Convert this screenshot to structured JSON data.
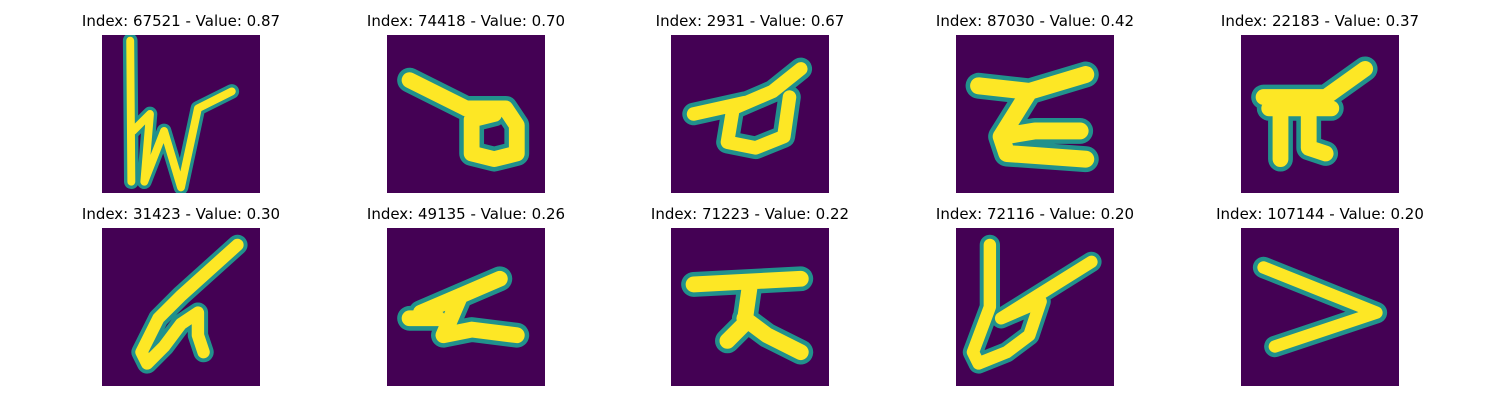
{
  "panels": [
    {
      "index": "67521",
      "value": "0.87",
      "title": "Index: 67521 - Value: 0.87"
    },
    {
      "index": "74418",
      "value": "0.70",
      "title": "Index: 74418 - Value: 0.70"
    },
    {
      "index": "2931",
      "value": "0.67",
      "title": "Index: 2931 - Value: 0.67"
    },
    {
      "index": "87030",
      "value": "0.42",
      "title": "Index: 87030 - Value: 0.42"
    },
    {
      "index": "22183",
      "value": "0.37",
      "title": "Index: 22183 - Value: 0.37"
    },
    {
      "index": "31423",
      "value": "0.30",
      "title": "Index: 31423 - Value: 0.30"
    },
    {
      "index": "49135",
      "value": "0.26",
      "title": "Index: 49135 - Value: 0.26"
    },
    {
      "index": "71223",
      "value": "0.22",
      "title": "Index: 71223 - Value: 0.22"
    },
    {
      "index": "72116",
      "value": "0.20",
      "title": "Index: 72116 - Value: 0.20"
    },
    {
      "index": "107144",
      "value": "0.20",
      "title": "Index: 107144 - Value: 0.20"
    }
  ],
  "colors": {
    "background": "#440154",
    "stroke_core": "#fde725",
    "stroke_edge": "#21918c",
    "stroke_mid": "#5ec962"
  }
}
